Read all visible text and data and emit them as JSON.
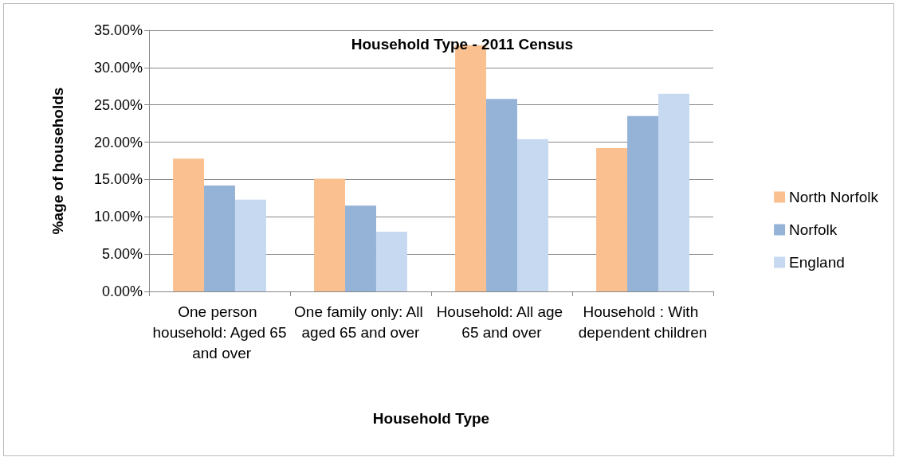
{
  "chart_data": {
    "type": "bar",
    "title": "Household Type - 2011 Census",
    "xlabel": "Household Type",
    "ylabel": "%age of households",
    "categories": [
      "One person household: Aged 65 and over",
      "One family only: All aged 65 and over",
      "Household: All age 65 and over",
      "Household : With dependent children"
    ],
    "series": [
      {
        "name": "North Norfolk",
        "color": "#fac090",
        "values": [
          17.8,
          15.1,
          33.0,
          19.2
        ]
      },
      {
        "name": "Norfolk",
        "color": "#95b3d7",
        "values": [
          14.2,
          11.5,
          25.8,
          23.5
        ]
      },
      {
        "name": "England",
        "color": "#c6d9f1",
        "values": [
          12.3,
          8.0,
          20.4,
          26.5
        ]
      }
    ],
    "ylim": [
      0,
      35
    ],
    "yticks": [
      {
        "value": 0,
        "label": "0.00%"
      },
      {
        "value": 5,
        "label": "5.00%"
      },
      {
        "value": 10,
        "label": "10.00%"
      },
      {
        "value": 15,
        "label": "15.00%"
      },
      {
        "value": 20,
        "label": "20.00%"
      },
      {
        "value": 25,
        "label": "25.00%"
      },
      {
        "value": 30,
        "label": "30.00%"
      },
      {
        "value": 35,
        "label": "35.00%"
      }
    ],
    "grid": "y",
    "legend": "right"
  }
}
